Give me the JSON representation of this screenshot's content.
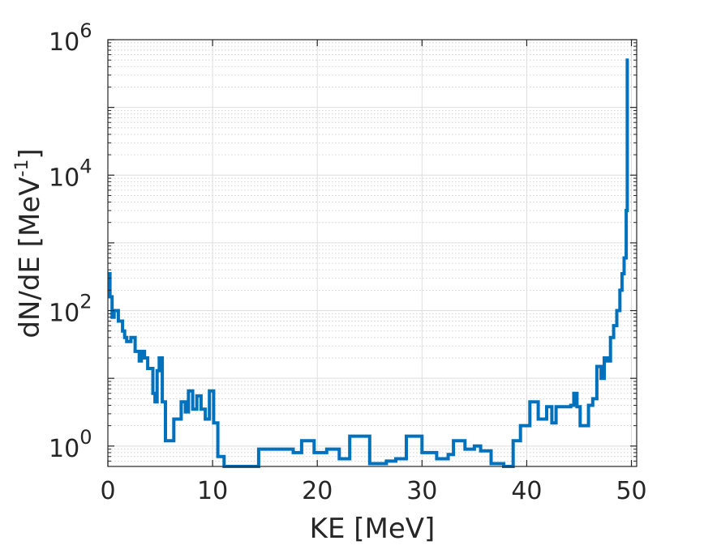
{
  "chart_data": {
    "type": "line",
    "style": "step",
    "xlabel": "KE [MeV]",
    "ylabel": {
      "base": "dN/dE [MeV",
      "exponent": "-1",
      "suffix": "]"
    },
    "xlim": [
      0,
      50.5
    ],
    "ylim": [
      0.5,
      1000000
    ],
    "yscale": "log",
    "grid": true,
    "minor_grid": true,
    "x_ticks": [
      {
        "value": 0,
        "label": "0"
      },
      {
        "value": 10,
        "label": "10"
      },
      {
        "value": 20,
        "label": "20"
      },
      {
        "value": 30,
        "label": "30"
      },
      {
        "value": 40,
        "label": "40"
      },
      {
        "value": 50,
        "label": "50"
      }
    ],
    "y_ticks": [
      {
        "value": 1,
        "base": "10",
        "exponent": "0"
      },
      {
        "value": 100,
        "base": "10",
        "exponent": "2"
      },
      {
        "value": 10000,
        "base": "10",
        "exponent": "4"
      },
      {
        "value": 1000000,
        "base": "10",
        "exponent": "6"
      }
    ],
    "series": [
      {
        "color": "#0072BD",
        "x": [
          0,
          0.2,
          0.4,
          0.6,
          1.0,
          1.4,
          1.6,
          1.8,
          2.2,
          2.6,
          3.0,
          3.2,
          3.5,
          3.8,
          4.1,
          4.3,
          4.5,
          4.7,
          4.9,
          5.2,
          5.5,
          6.3,
          6.6,
          7.0,
          7.4,
          7.7,
          8.1,
          8.5,
          8.9,
          9.3,
          9.7,
          10.1,
          10.5,
          11.1,
          12.4,
          14.4,
          16.5,
          17.7,
          18.5,
          19.7,
          20.9,
          22.1,
          23.1,
          25.0,
          26.6,
          27.5,
          28.5,
          30.0,
          31.4,
          32.5,
          33.0,
          34.1,
          35.0,
          35.6,
          36.6,
          37.8,
          38.7,
          39.4,
          40.3,
          41.1,
          41.9,
          42.4,
          42.8,
          44.2,
          44.5,
          44.8,
          45.1,
          45.5,
          45.9,
          46.3,
          46.7,
          47.1,
          47.4,
          47.7,
          48.0,
          48.3,
          48.6,
          48.9,
          49.1,
          49.3,
          49.5,
          49.6
        ],
        "y": [
          350,
          160,
          80,
          100,
          70,
          50,
          40,
          35,
          40,
          25,
          18,
          25,
          20,
          14,
          14,
          6,
          4.5,
          13,
          20,
          4.5,
          1.2,
          2.5,
          2.5,
          4.5,
          3.2,
          6.5,
          3.5,
          5.5,
          3.5,
          2.5,
          6.5,
          2.2,
          0.7,
          0.5,
          0.5,
          0.9,
          0.9,
          0.8,
          1.2,
          0.8,
          0.9,
          0.65,
          1.4,
          0.55,
          0.6,
          0.65,
          1.4,
          0.8,
          0.65,
          0.75,
          1.2,
          0.9,
          1.0,
          0.85,
          0.55,
          0.5,
          1.2,
          2.0,
          4.5,
          2.5,
          3.8,
          2.2,
          3.8,
          4.0,
          6.0,
          3.8,
          2.0,
          2.0,
          4.0,
          5.0,
          15,
          10,
          20,
          18,
          40,
          60,
          100,
          200,
          350,
          600,
          3000,
          500000
        ]
      }
    ]
  }
}
